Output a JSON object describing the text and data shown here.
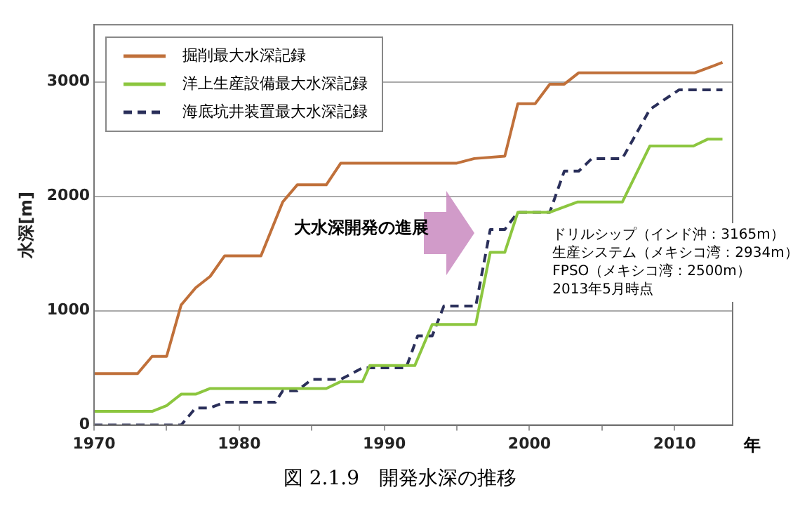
{
  "chart_data": {
    "type": "line",
    "title": "図 2.1.9　開発水深の推移",
    "ylabel": "水深[m]",
    "xlabel": "年",
    "xlim": [
      1970,
      2014
    ],
    "xticks": [
      1970,
      {
        "value": 1975,
        "label": null
      },
      1980,
      {
        "value": 1985,
        "label": null
      },
      1990,
      {
        "value": 1995,
        "label": null
      },
      2000,
      {
        "value": 2005,
        "label": null
      },
      2010
    ],
    "ylim": [
      0,
      3500
    ],
    "yticks": [
      0,
      1000,
      2000,
      3000
    ],
    "grid": "y",
    "legend": "top left",
    "marker": "none",
    "series": [
      {
        "name": "掘削最大水深記録",
        "color": "#c0703a",
        "line_style": "solid",
        "x": [
          1970,
          1973,
          1974,
          1975,
          1976,
          1977,
          1978,
          1979,
          1981.5,
          1983,
          1984,
          1986,
          1987,
          1995,
          1996.2,
          1998.3,
          1999.2,
          2000.4,
          2001.4,
          2002.4,
          2003.4,
          2011.4,
          2013.3
        ],
        "values": [
          450,
          450,
          600,
          600,
          1050,
          1200,
          1300,
          1480,
          1480,
          1950,
          2100,
          2100,
          2290,
          2290,
          2330,
          2350,
          2810,
          2810,
          2980,
          2980,
          3080,
          3080,
          3170
        ]
      },
      {
        "name": "洋上生産設備最大水深記録",
        "color": "#8cc63f",
        "line_style": "solid",
        "x": [
          1970,
          1974,
          1975,
          1976,
          1977,
          1978,
          1986,
          1987,
          1988.5,
          1989,
          1992.1,
          1993.3,
          1996.3,
          1997.3,
          1998.3,
          1999.2,
          2001.4,
          2003.3,
          2006.4,
          2008.3,
          2011.3,
          2012.3,
          2013.3
        ],
        "values": [
          120,
          120,
          170,
          270,
          270,
          320,
          320,
          380,
          380,
          520,
          520,
          880,
          880,
          1510,
          1510,
          1860,
          1860,
          1950,
          1950,
          2440,
          2440,
          2500,
          2500
        ]
      },
      {
        "name": "海底坑井装置最大水深記録",
        "color": "#2a2f5a",
        "line_style": "dashed",
        "x": [
          1970,
          1976,
          1977,
          1978,
          1979,
          1982.5,
          1983,
          1984,
          1985,
          1987,
          1988.5,
          1991.5,
          1992.3,
          1993.3,
          1994.1,
          1996.3,
          1997.3,
          1998.3,
          1999.2,
          2001.4,
          2002.4,
          2003.4,
          2004.3,
          2006.4,
          2008.3,
          2010.3,
          2013.3
        ],
        "values": [
          0,
          0,
          150,
          150,
          200,
          200,
          300,
          300,
          400,
          400,
          500,
          500,
          780,
          780,
          1040,
          1040,
          1710,
          1710,
          1860,
          1860,
          2220,
          2220,
          2330,
          2330,
          2760,
          2930,
          2930
        ]
      }
    ],
    "annotations": [
      "大水深開発の進展",
      "ドリルシップ（インド沖：3165m）",
      "生産システム（メキシコ湾：2934m）",
      "FPSO（メキシコ湾：2500m）",
      "2013年5月時点"
    ]
  }
}
